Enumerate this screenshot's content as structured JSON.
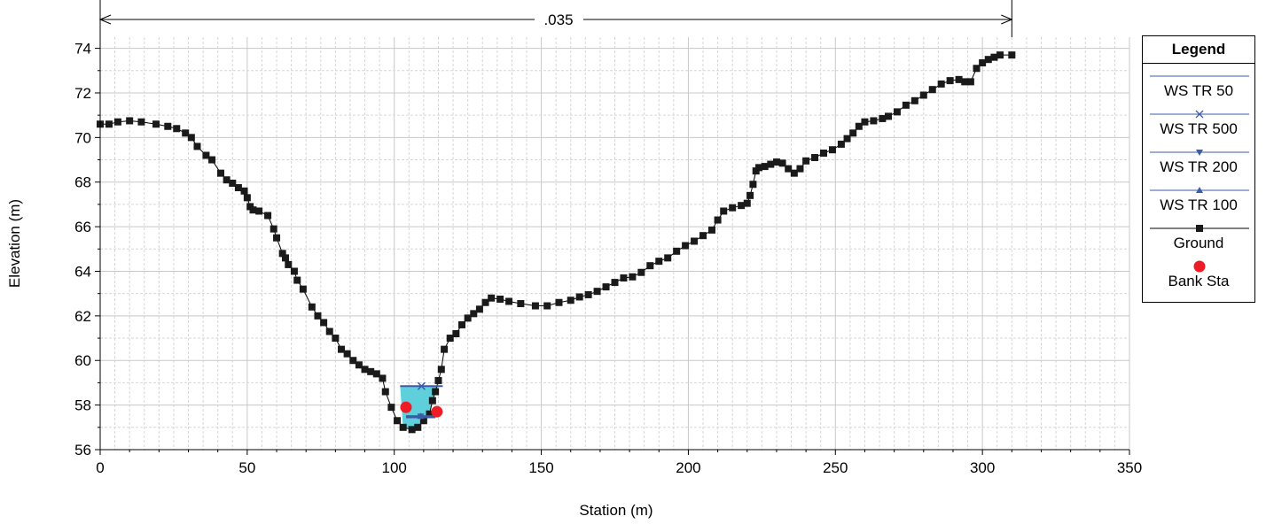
{
  "chart_data": {
    "type": "line",
    "xlabel": "Station (m)",
    "ylabel": "Elevation (m)",
    "xlim": [
      0,
      350
    ],
    "ylim": [
      56,
      74.5
    ],
    "x_ticks": [
      "0",
      "50",
      "100",
      "150",
      "200",
      "250",
      "300",
      "350"
    ],
    "y_ticks": [
      "56",
      "58",
      "60",
      "62",
      "64",
      "66",
      "68",
      "70",
      "72",
      "74"
    ],
    "grid": true,
    "legend_placement": "right",
    "roughness_annotation": {
      "label": ".035",
      "from_station": 0,
      "to_station": 310
    },
    "series": [
      {
        "name": "Ground",
        "color": "#000000",
        "marker": "square",
        "points": [
          [
            0,
            70.6
          ],
          [
            3,
            70.6
          ],
          [
            6,
            70.7
          ],
          [
            10,
            70.75
          ],
          [
            14,
            70.7
          ],
          [
            19,
            70.6
          ],
          [
            23,
            70.5
          ],
          [
            26,
            70.4
          ],
          [
            29,
            70.2
          ],
          [
            31,
            70.0
          ],
          [
            33,
            69.6
          ],
          [
            36,
            69.2
          ],
          [
            38,
            69.0
          ],
          [
            41,
            68.4
          ],
          [
            43,
            68.1
          ],
          [
            45,
            67.95
          ],
          [
            47,
            67.75
          ],
          [
            49,
            67.6
          ],
          [
            50,
            67.3
          ],
          [
            51,
            66.9
          ],
          [
            52,
            66.75
          ],
          [
            54,
            66.7
          ],
          [
            57,
            66.5
          ],
          [
            59,
            65.9
          ],
          [
            60,
            65.5
          ],
          [
            62,
            64.8
          ],
          [
            63,
            64.6
          ],
          [
            64,
            64.3
          ],
          [
            66,
            64.0
          ],
          [
            67,
            63.6
          ],
          [
            69,
            63.2
          ],
          [
            72,
            62.4
          ],
          [
            74,
            62.0
          ],
          [
            76,
            61.7
          ],
          [
            78,
            61.3
          ],
          [
            80,
            61.0
          ],
          [
            82,
            60.5
          ],
          [
            84,
            60.3
          ],
          [
            86,
            60.0
          ],
          [
            88,
            59.8
          ],
          [
            90,
            59.6
          ],
          [
            92,
            59.5
          ],
          [
            94,
            59.4
          ],
          [
            96,
            59.2
          ],
          [
            97,
            58.6
          ],
          [
            99,
            57.9
          ],
          [
            101,
            57.3
          ],
          [
            103,
            57.0
          ],
          [
            106,
            56.9
          ],
          [
            108,
            57.0
          ],
          [
            110,
            57.3
          ],
          [
            112,
            57.6
          ],
          [
            113,
            58.2
          ],
          [
            114,
            58.6
          ],
          [
            115,
            59.1
          ],
          [
            116,
            59.6
          ],
          [
            117,
            60.5
          ],
          [
            119,
            61.0
          ],
          [
            121,
            61.2
          ],
          [
            123,
            61.6
          ],
          [
            125,
            61.9
          ],
          [
            127,
            62.1
          ],
          [
            129,
            62.3
          ],
          [
            131,
            62.6
          ],
          [
            133,
            62.8
          ],
          [
            136,
            62.75
          ],
          [
            139,
            62.65
          ],
          [
            143,
            62.55
          ],
          [
            148,
            62.45
          ],
          [
            152,
            62.45
          ],
          [
            156,
            62.6
          ],
          [
            160,
            62.7
          ],
          [
            163,
            62.85
          ],
          [
            166,
            62.95
          ],
          [
            169,
            63.1
          ],
          [
            172,
            63.3
          ],
          [
            175,
            63.5
          ],
          [
            178,
            63.7
          ],
          [
            181,
            63.75
          ],
          [
            184,
            63.95
          ],
          [
            187,
            64.25
          ],
          [
            190,
            64.45
          ],
          [
            193,
            64.6
          ],
          [
            196,
            64.9
          ],
          [
            199,
            65.15
          ],
          [
            202,
            65.35
          ],
          [
            205,
            65.6
          ],
          [
            208,
            65.85
          ],
          [
            210,
            66.3
          ],
          [
            212,
            66.7
          ],
          [
            215,
            66.85
          ],
          [
            218,
            66.95
          ],
          [
            220,
            67.05
          ],
          [
            221,
            67.4
          ],
          [
            222,
            67.9
          ],
          [
            223,
            68.5
          ],
          [
            224,
            68.65
          ],
          [
            226,
            68.7
          ],
          [
            228,
            68.8
          ],
          [
            230,
            68.9
          ],
          [
            232,
            68.85
          ],
          [
            234,
            68.6
          ],
          [
            236,
            68.4
          ],
          [
            238,
            68.6
          ],
          [
            240,
            68.95
          ],
          [
            243,
            69.1
          ],
          [
            246,
            69.3
          ],
          [
            249,
            69.45
          ],
          [
            252,
            69.7
          ],
          [
            254,
            69.95
          ],
          [
            256,
            70.2
          ],
          [
            258,
            70.5
          ],
          [
            260,
            70.7
          ],
          [
            263,
            70.75
          ],
          [
            266,
            70.85
          ],
          [
            268,
            70.95
          ],
          [
            271,
            71.15
          ],
          [
            274,
            71.45
          ],
          [
            277,
            71.65
          ],
          [
            280,
            71.9
          ],
          [
            283,
            72.15
          ],
          [
            286,
            72.4
          ],
          [
            289,
            72.55
          ],
          [
            292,
            72.6
          ],
          [
            294,
            72.5
          ],
          [
            296,
            72.5
          ],
          [
            298,
            73.1
          ],
          [
            300,
            73.35
          ],
          [
            302,
            73.5
          ],
          [
            304,
            73.6
          ],
          [
            306,
            73.7
          ],
          [
            310,
            73.7
          ]
        ]
      },
      {
        "name": "WS TR 50",
        "color": "#3b5ba9",
        "marker": "none",
        "y": 57.45,
        "x_range": [
          104,
          114
        ]
      },
      {
        "name": "WS TR 500",
        "color": "#3b5ba9",
        "marker": "x",
        "y": 58.85,
        "x_range": [
          102,
          116.5
        ]
      },
      {
        "name": "WS TR 200",
        "color": "#3b5ba9",
        "marker": "triangle-down",
        "y": 57.5,
        "x_range": [
          104,
          114
        ]
      },
      {
        "name": "WS TR 100",
        "color": "#3b5ba9",
        "marker": "triangle-up",
        "y": 57.5,
        "x_range": [
          104,
          114
        ]
      },
      {
        "name": "Bank Sta",
        "color": "#ee1c25",
        "marker": "circle",
        "points": [
          [
            104,
            57.9
          ],
          [
            114.5,
            57.7
          ]
        ]
      }
    ],
    "water_fill_color": "#5fcfdc"
  },
  "legend": {
    "title": "Legend",
    "items": [
      "WS TR 50",
      "WS TR 500",
      "WS TR 200",
      "WS TR 100",
      "Ground",
      "Bank Sta"
    ]
  }
}
